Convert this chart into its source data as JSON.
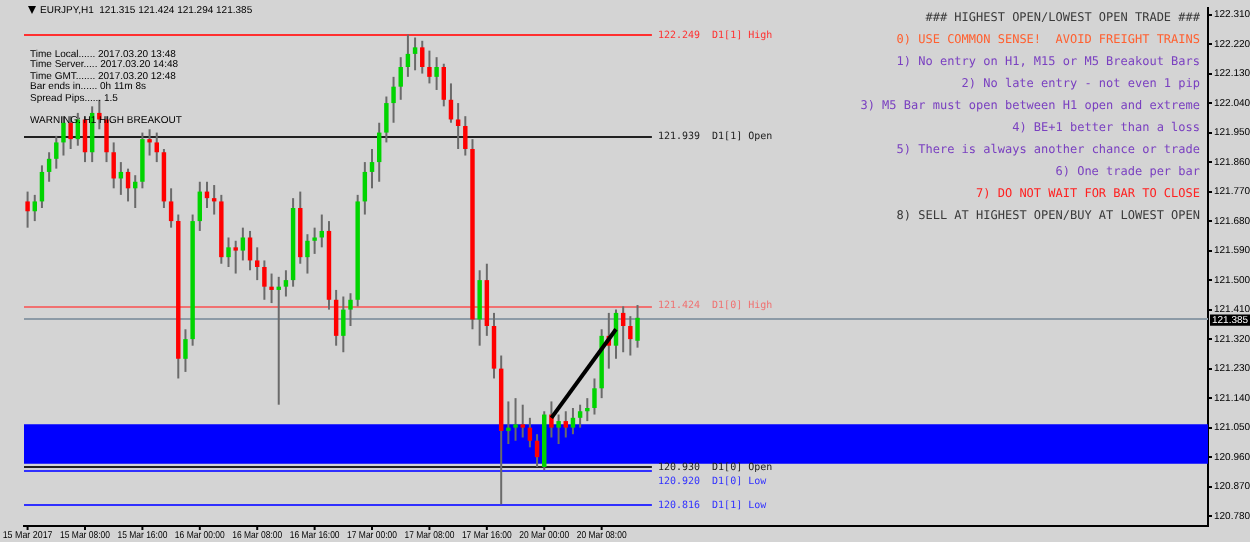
{
  "chart_data": {
    "type": "candlestick",
    "title": "EURJPY,H1  121.315 121.424 121.294 121.385",
    "categories": [
      "15 Mar 2017",
      null,
      null,
      null,
      null,
      null,
      null,
      null,
      "15 Mar 08:00",
      null,
      null,
      null,
      null,
      null,
      null,
      null,
      "15 Mar 16:00",
      null,
      null,
      null,
      null,
      null,
      null,
      null,
      "16 Mar 00:00",
      null,
      null,
      null,
      null,
      null,
      null,
      null,
      "16 Mar 08:00",
      null,
      null,
      null,
      null,
      null,
      null,
      null,
      "16 Mar 16:00",
      null,
      null,
      null,
      null,
      null,
      null,
      null,
      "17 Mar 00:00",
      null,
      null,
      null,
      null,
      null,
      null,
      null,
      "17 Mar 08:00",
      null,
      null,
      null,
      null,
      null,
      null,
      null,
      "17 Mar 16:00",
      null,
      null,
      null,
      null,
      null,
      null,
      null,
      "20 Mar 00:00",
      null,
      null,
      null,
      null,
      null,
      null,
      null,
      "20 Mar 08:00",
      null,
      null,
      null,
      null,
      null,
      null,
      null,
      null,
      null,
      null,
      null,
      null,
      null,
      null,
      null,
      null,
      null,
      null,
      null,
      null,
      null,
      null,
      null,
      null,
      null,
      null,
      null,
      null,
      null,
      null,
      null,
      null,
      null,
      null,
      null,
      null,
      null,
      null,
      null,
      null,
      null,
      null,
      null,
      null,
      null,
      null,
      null,
      null,
      null,
      null,
      null,
      null,
      null,
      null,
      null,
      null,
      null,
      null,
      null,
      null,
      null,
      null,
      null,
      null,
      null,
      null,
      null,
      null,
      null,
      null,
      null,
      null,
      null,
      null,
      null,
      null,
      null,
      null,
      null,
      null,
      null,
      null,
      null,
      null
    ],
    "ohlc": [
      [
        121.74,
        121.77,
        121.66,
        121.71
      ],
      [
        121.71,
        121.76,
        121.68,
        121.74
      ],
      [
        121.74,
        121.85,
        121.72,
        121.83
      ],
      [
        121.83,
        121.89,
        121.8,
        121.87
      ],
      [
        121.87,
        121.94,
        121.84,
        121.92
      ],
      [
        121.92,
        122.0,
        121.88,
        121.98
      ],
      [
        121.98,
        122.0,
        121.9,
        121.93
      ],
      [
        121.93,
        122.01,
        121.91,
        121.99
      ],
      [
        121.99,
        122.0,
        121.86,
        121.89
      ],
      [
        121.89,
        122.03,
        121.86,
        122.01
      ],
      [
        122.01,
        122.05,
        121.96,
        121.99
      ],
      [
        121.99,
        122.0,
        121.86,
        121.89
      ],
      [
        121.89,
        121.92,
        121.78,
        121.81
      ],
      [
        121.81,
        121.86,
        121.76,
        121.83
      ],
      [
        121.83,
        121.84,
        121.74,
        121.78
      ],
      [
        121.78,
        121.82,
        121.72,
        121.8
      ],
      [
        121.8,
        121.95,
        121.78,
        121.93
      ],
      [
        121.93,
        121.96,
        121.88,
        121.92
      ],
      [
        121.92,
        121.95,
        121.86,
        121.89
      ],
      [
        121.89,
        121.9,
        121.72,
        121.74
      ],
      [
        121.74,
        121.78,
        121.66,
        121.68
      ],
      [
        121.68,
        121.7,
        121.2,
        121.26
      ],
      [
        121.26,
        121.35,
        121.22,
        121.32
      ],
      [
        121.32,
        121.7,
        121.3,
        121.68
      ],
      [
        121.68,
        121.8,
        121.65,
        121.77
      ],
      [
        121.77,
        121.8,
        121.72,
        121.75
      ],
      [
        121.75,
        121.79,
        121.7,
        121.74
      ],
      [
        121.74,
        121.76,
        121.55,
        121.57
      ],
      [
        121.57,
        121.63,
        121.54,
        121.6
      ],
      [
        121.6,
        121.62,
        121.52,
        121.59
      ],
      [
        121.59,
        121.66,
        121.56,
        121.63
      ],
      [
        121.63,
        121.65,
        121.53,
        121.56
      ],
      [
        121.56,
        121.6,
        121.5,
        121.54
      ],
      [
        121.54,
        121.56,
        121.44,
        121.48
      ],
      [
        121.48,
        121.52,
        121.43,
        121.47
      ],
      [
        121.47,
        121.51,
        121.12,
        121.48
      ],
      [
        121.48,
        121.53,
        121.45,
        121.5
      ],
      [
        121.5,
        121.75,
        121.48,
        121.72
      ],
      [
        121.72,
        121.77,
        121.55,
        121.57
      ],
      [
        121.57,
        121.64,
        121.52,
        121.62
      ],
      [
        121.62,
        121.66,
        121.58,
        121.63
      ],
      [
        121.63,
        121.7,
        121.6,
        121.65
      ],
      [
        121.65,
        121.68,
        121.41,
        121.44
      ],
      [
        121.44,
        121.47,
        121.3,
        121.33
      ],
      [
        121.33,
        121.45,
        121.28,
        121.41
      ],
      [
        121.41,
        121.46,
        121.36,
        121.44
      ],
      [
        121.44,
        121.76,
        121.42,
        121.74
      ],
      [
        121.74,
        121.86,
        121.7,
        121.83
      ],
      [
        121.83,
        121.9,
        121.78,
        121.86
      ],
      [
        121.86,
        121.98,
        121.8,
        121.95
      ],
      [
        121.95,
        122.06,
        121.92,
        122.04
      ],
      [
        122.04,
        122.12,
        121.98,
        122.09
      ],
      [
        122.09,
        122.18,
        122.05,
        122.15
      ],
      [
        122.15,
        122.249,
        122.12,
        122.19
      ],
      [
        122.19,
        122.24,
        122.14,
        122.21
      ],
      [
        122.21,
        122.23,
        122.13,
        122.15
      ],
      [
        122.15,
        122.2,
        122.1,
        122.12
      ],
      [
        122.12,
        122.18,
        122.08,
        122.15
      ],
      [
        122.15,
        122.16,
        122.03,
        122.05
      ],
      [
        122.05,
        122.1,
        121.98,
        121.99
      ],
      [
        121.99,
        122.04,
        121.9,
        121.97
      ],
      [
        121.97,
        122.0,
        121.88,
        121.9
      ],
      [
        121.9,
        121.93,
        121.35,
        121.38
      ],
      [
        121.38,
        121.53,
        121.3,
        121.5
      ],
      [
        121.5,
        121.55,
        121.33,
        121.36
      ],
      [
        121.36,
        121.4,
        121.2,
        121.23
      ],
      [
        121.23,
        121.27,
        120.816,
        121.04
      ],
      [
        121.04,
        121.13,
        121.0,
        121.05
      ],
      [
        121.05,
        121.14,
        121.01,
        121.06
      ],
      [
        121.06,
        121.12,
        121.02,
        121.05
      ],
      [
        121.05,
        121.08,
        120.99,
        121.01
      ],
      [
        121.01,
        121.03,
        120.93,
        120.96
      ],
      [
        120.93,
        121.1,
        120.92,
        121.09
      ],
      [
        121.09,
        121.13,
        121.02,
        121.05
      ],
      [
        121.05,
        121.09,
        121.0,
        121.07
      ],
      [
        121.07,
        121.1,
        121.02,
        121.05
      ],
      [
        121.05,
        121.11,
        121.03,
        121.08
      ],
      [
        121.08,
        121.12,
        121.05,
        121.1
      ],
      [
        121.1,
        121.14,
        121.07,
        121.11
      ],
      [
        121.11,
        121.2,
        121.09,
        121.17
      ],
      [
        121.17,
        121.35,
        121.14,
        121.33
      ],
      [
        121.33,
        121.4,
        121.23,
        121.3
      ],
      [
        121.3,
        121.41,
        121.26,
        121.4
      ],
      [
        121.4,
        121.42,
        121.28,
        121.36
      ],
      [
        121.36,
        121.39,
        121.27,
        121.32
      ],
      [
        121.315,
        121.424,
        121.294,
        121.385
      ],
      null,
      null,
      null,
      null,
      null,
      null,
      null,
      null,
      null,
      null,
      null,
      null,
      null,
      null,
      null,
      null,
      null,
      null,
      null,
      null,
      null,
      null,
      null,
      null,
      null,
      null,
      null,
      null,
      null,
      null,
      null,
      null,
      null,
      null,
      null,
      null,
      null,
      null,
      null,
      null,
      null,
      null,
      null,
      null,
      null,
      null,
      null,
      null,
      null,
      null,
      null,
      null,
      null,
      null,
      null,
      null,
      null,
      null,
      null,
      null,
      null,
      null,
      null,
      null,
      null,
      null,
      null,
      null,
      null,
      null,
      null,
      null,
      null,
      null,
      null,
      null,
      null,
      null,
      null
    ],
    "series": [
      {
        "type": "line",
        "color": "#000000",
        "values": [
          null,
          null,
          null,
          null,
          null,
          null,
          null,
          null,
          null,
          null,
          null,
          null,
          null,
          null,
          null,
          null,
          null,
          null,
          null,
          null,
          null,
          null,
          null,
          null,
          null,
          null,
          null,
          null,
          null,
          null,
          null,
          null,
          null,
          null,
          null,
          null,
          null,
          null,
          null,
          null,
          null,
          null,
          null,
          null,
          null,
          null,
          null,
          null,
          null,
          null,
          null,
          null,
          null,
          null,
          null,
          null,
          null,
          null,
          null,
          null,
          null,
          null,
          null,
          null,
          null,
          null,
          null,
          null,
          null,
          null,
          null,
          null,
          null,
          121.08,
          null,
          null,
          null,
          null,
          null,
          null,
          null,
          null,
          121.35,
          null,
          null,
          null,
          null,
          null,
          null,
          null,
          null,
          null,
          null,
          null,
          null,
          null,
          null,
          null,
          null,
          null,
          null,
          null,
          null,
          null,
          null,
          null,
          null,
          null,
          null,
          null,
          null,
          null,
          null,
          null,
          null,
          null,
          null,
          null,
          null,
          null,
          null,
          null,
          null,
          null,
          null,
          null,
          null,
          null,
          null,
          null,
          null,
          null,
          null,
          null,
          null,
          null,
          null,
          null,
          null,
          null,
          null,
          null,
          null,
          null,
          null,
          null,
          null,
          null,
          null,
          null,
          null,
          null,
          null,
          null,
          null,
          null,
          null,
          null,
          null,
          null,
          null,
          null,
          null,
          null,
          null
        ]
      }
    ],
    "ylim": [
      120.75,
      122.33
    ],
    "yticks": [
      {
        "value": 122.31,
        "label": "122.310"
      },
      {
        "value": 122.22,
        "label": "122.220"
      },
      {
        "value": 122.13,
        "label": "122.130"
      },
      {
        "value": 122.04,
        "label": "122.040"
      },
      {
        "value": 121.95,
        "label": "121.950"
      },
      {
        "value": 121.86,
        "label": "121.860"
      },
      {
        "value": 121.77,
        "label": "121.770"
      },
      {
        "value": 121.68,
        "label": "121.680"
      },
      {
        "value": 121.59,
        "label": "121.590"
      },
      {
        "value": 121.5,
        "label": "121.500"
      },
      {
        "value": 121.41,
        "label": "121.410"
      },
      {
        "value": 121.32,
        "label": "121.320"
      },
      {
        "value": 121.23,
        "label": "121.230"
      },
      {
        "value": 121.14,
        "label": "121.140"
      },
      {
        "value": 121.05,
        "label": "121.050"
      },
      {
        "value": 120.96,
        "label": "120.960"
      },
      {
        "value": 120.87,
        "label": "120.870"
      },
      {
        "value": 120.78,
        "label": "120.780"
      }
    ],
    "ref_lines": [
      {
        "axis": "y",
        "value": 122.249,
        "label": "122.249  D1[1] High",
        "color": "#ff3030"
      },
      {
        "axis": "y",
        "value": 121.939,
        "label": "121.939  D1[1] Open",
        "color": "#202020"
      },
      {
        "axis": "y",
        "value": 121.424,
        "label": "121.424  D1[0] High",
        "color": "#f07070"
      },
      {
        "axis": "y",
        "value": 120.93,
        "label": "120.930  D1[0] Open",
        "color": "#202020"
      },
      {
        "axis": "y",
        "value": 120.92,
        "label": "120.920  D1[0] Low",
        "color": "#3030ff"
      },
      {
        "axis": "y",
        "value": 120.816,
        "label": "120.816  D1[1] Low",
        "color": "#3030ff"
      },
      {
        "axis": "y",
        "value": 121.385,
        "color": "#8c9aa6"
      }
    ],
    "bands": [
      {
        "axis": "y",
        "from": 120.94,
        "to": 121.06,
        "color": "#0000ff"
      }
    ],
    "annotations": [
      "Time Local...... 2017.03.20 13:48",
      "Time Server..... 2017.03.20 14:48",
      "Time GMT....... 2017.03.20 12:48",
      "Bar ends in...... 0h 11m 8s",
      "Spread Pips...... 1.5",
      "WARNING: H1 HIGH BREAKOUT",
      "### HIGHEST OPEN/LOWEST OPEN TRADE ###",
      "0) USE COMMON SENSE!  AVOID FREIGHT TRAINS",
      "1) No entry on H1, M15 or M5 Breakout Bars",
      "2) No late entry - not even 1 pip",
      "3) M5 Bar must open between H1 open and extreme",
      "4) BE+1 better than a loss",
      "5) There is always another chance or trade",
      "6) One trade per bar",
      "7) DO NOT WAIT FOR BAR TO CLOSE",
      "8) SELL AT HIGHEST OPEN/BUY AT LOWEST OPEN",
      "121.385"
    ]
  }
}
